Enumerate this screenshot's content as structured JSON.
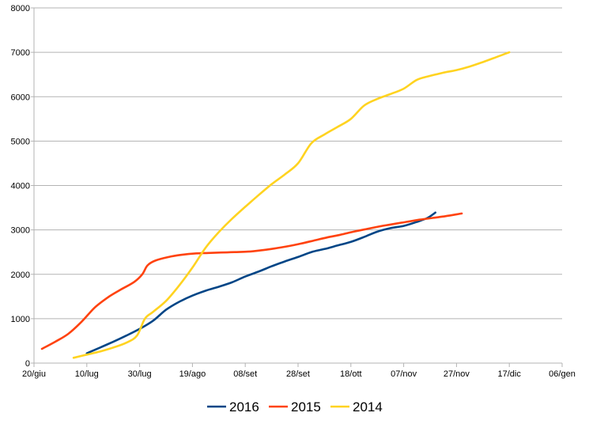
{
  "chart_data": {
    "type": "line",
    "title": "",
    "xlabel": "",
    "ylabel": "",
    "x_ticks": [
      "20/giu",
      "10/lug",
      "30/lug",
      "19/ago",
      "08/set",
      "28/set",
      "18/ott",
      "07/nov",
      "27/nov",
      "17/dic",
      "06/gen"
    ],
    "ylim": [
      0,
      8000
    ],
    "y_ticks": [
      "0",
      "1000",
      "2000",
      "3000",
      "4000",
      "5000",
      "6000",
      "7000",
      "8000"
    ],
    "grid": "horizontal",
    "legend_position": "bottom",
    "series": [
      {
        "name": "2016",
        "color": "#004586",
        "points": [
          [
            "10/lug",
            220
          ],
          [
            "15/lug",
            350
          ],
          [
            "20/lug",
            480
          ],
          [
            "25/lug",
            620
          ],
          [
            "30/lug",
            770
          ],
          [
            "04/ago",
            950
          ],
          [
            "09/ago",
            1200
          ],
          [
            "14/ago",
            1380
          ],
          [
            "19/ago",
            1520
          ],
          [
            "24/ago",
            1630
          ],
          [
            "29/ago",
            1720
          ],
          [
            "03/set",
            1820
          ],
          [
            "08/set",
            1950
          ],
          [
            "13/set",
            2060
          ],
          [
            "18/set",
            2180
          ],
          [
            "23/set",
            2290
          ],
          [
            "28/set",
            2390
          ],
          [
            "03/ott",
            2500
          ],
          [
            "08/ott",
            2570
          ],
          [
            "13/ott",
            2650
          ],
          [
            "18/ott",
            2730
          ],
          [
            "23/ott",
            2840
          ],
          [
            "28/ott",
            2960
          ],
          [
            "02/nov",
            3040
          ],
          [
            "07/nov",
            3090
          ],
          [
            "12/nov",
            3180
          ],
          [
            "16/nov",
            3270
          ],
          [
            "19/nov",
            3390
          ]
        ]
      },
      {
        "name": "2015",
        "color": "#ff420e",
        "points": [
          [
            "23/giu",
            320
          ],
          [
            "28/giu",
            480
          ],
          [
            "03/lug",
            660
          ],
          [
            "08/lug",
            930
          ],
          [
            "13/lug",
            1250
          ],
          [
            "18/lug",
            1480
          ],
          [
            "23/lug",
            1660
          ],
          [
            "28/lug",
            1830
          ],
          [
            "31/lug",
            2000
          ],
          [
            "02/ago",
            2200
          ],
          [
            "05/ago",
            2310
          ],
          [
            "10/ago",
            2390
          ],
          [
            "15/ago",
            2440
          ],
          [
            "20/ago",
            2470
          ],
          [
            "25/ago",
            2480
          ],
          [
            "30/ago",
            2490
          ],
          [
            "04/set",
            2500
          ],
          [
            "09/set",
            2510
          ],
          [
            "14/set",
            2540
          ],
          [
            "19/set",
            2580
          ],
          [
            "24/set",
            2630
          ],
          [
            "29/set",
            2690
          ],
          [
            "04/ott",
            2760
          ],
          [
            "09/ott",
            2830
          ],
          [
            "14/ott",
            2890
          ],
          [
            "19/ott",
            2960
          ],
          [
            "24/ott",
            3020
          ],
          [
            "29/ott",
            3080
          ],
          [
            "03/nov",
            3130
          ],
          [
            "08/nov",
            3180
          ],
          [
            "13/nov",
            3230
          ],
          [
            "18/nov",
            3270
          ],
          [
            "23/nov",
            3310
          ],
          [
            "29/nov",
            3370
          ]
        ]
      },
      {
        "name": "2014",
        "color": "#ffd320",
        "points": [
          [
            "05/lug",
            120
          ],
          [
            "10/lug",
            190
          ],
          [
            "15/lug",
            260
          ],
          [
            "20/lug",
            350
          ],
          [
            "25/lug",
            460
          ],
          [
            "29/lug",
            620
          ],
          [
            "01/ago",
            1000
          ],
          [
            "04/ago",
            1150
          ],
          [
            "09/ago",
            1400
          ],
          [
            "14/ago",
            1750
          ],
          [
            "19/ago",
            2150
          ],
          [
            "24/ago",
            2600
          ],
          [
            "29/ago",
            2950
          ],
          [
            "03/set",
            3250
          ],
          [
            "08/set",
            3520
          ],
          [
            "13/set",
            3780
          ],
          [
            "18/set",
            4030
          ],
          [
            "23/set",
            4250
          ],
          [
            "28/set",
            4500
          ],
          [
            "03/ott",
            4950
          ],
          [
            "08/ott",
            5150
          ],
          [
            "13/ott",
            5320
          ],
          [
            "18/ott",
            5500
          ],
          [
            "23/ott",
            5800
          ],
          [
            "28/ott",
            5950
          ],
          [
            "02/nov",
            6060
          ],
          [
            "07/nov",
            6180
          ],
          [
            "12/nov",
            6380
          ],
          [
            "17/nov",
            6470
          ],
          [
            "22/nov",
            6540
          ],
          [
            "27/nov",
            6600
          ],
          [
            "02/dic",
            6680
          ],
          [
            "07/dic",
            6780
          ],
          [
            "12/dic",
            6890
          ],
          [
            "17/dic",
            7000
          ]
        ]
      }
    ]
  }
}
